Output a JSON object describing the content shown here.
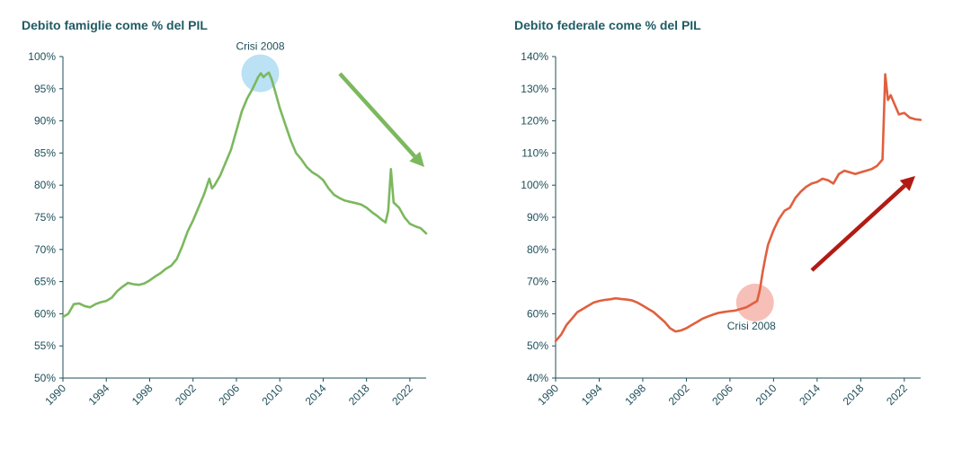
{
  "colors": {
    "left_line": "#7cb85e",
    "right_line": "#e0603f",
    "left_circle": "#aedcf2",
    "right_circle": "#f4b4aa",
    "left_arrow": "#7cb85e",
    "right_arrow": "#b21b14",
    "axis": "#1f4f5a"
  },
  "chart_data": [
    {
      "type": "line",
      "title": "Debito famiglie come % del PIL",
      "xlim": [
        1990,
        2023.5
      ],
      "ylim": [
        50,
        100
      ],
      "x_ticks": [
        "1990",
        "1994",
        "1998",
        "2002",
        "2006",
        "2010",
        "2014",
        "2018",
        "2022"
      ],
      "y_ticks": [
        "50%",
        "55%",
        "60%",
        "65%",
        "70%",
        "75%",
        "80%",
        "85%",
        "90%",
        "95%",
        "100%"
      ],
      "annotation": {
        "text": "Crisi 2008",
        "x": 2008.2,
        "y": 97.4
      },
      "trend_arrow": "down",
      "series": [
        {
          "x": [
            1990,
            1990.5,
            1991,
            1991.5,
            1992,
            1992.5,
            1993,
            1993.5,
            1994,
            1994.5,
            1995,
            1995.5,
            1996,
            1996.5,
            1997,
            1997.5,
            1998,
            1998.5,
            1999,
            1999.5,
            2000,
            2000.5,
            2001,
            2001.5,
            2002,
            2002.5,
            2003,
            2003.5,
            2003.75,
            2004,
            2004.5,
            2005,
            2005.5,
            2006,
            2006.5,
            2007,
            2007.5,
            2008,
            2008.25,
            2008.5,
            2008.75,
            2009,
            2009.25,
            2009.5,
            2010,
            2010.5,
            2011,
            2011.5,
            2012,
            2012.5,
            2013,
            2013.5,
            2014,
            2014.5,
            2015,
            2015.5,
            2016,
            2016.5,
            2017,
            2017.5,
            2018,
            2018.5,
            2019,
            2019.5,
            2019.75,
            2020,
            2020.25,
            2020.5,
            2021,
            2021.5,
            2022,
            2022.5,
            2023,
            2023.5
          ],
          "values": [
            59.5,
            60.0,
            61.5,
            61.6,
            61.2,
            61.0,
            61.5,
            61.8,
            62.0,
            62.5,
            63.5,
            64.2,
            64.8,
            64.6,
            64.5,
            64.7,
            65.2,
            65.8,
            66.3,
            67.0,
            67.5,
            68.5,
            70.5,
            72.8,
            74.5,
            76.5,
            78.5,
            81.0,
            79.5,
            80.0,
            81.5,
            83.5,
            85.5,
            88.5,
            91.5,
            93.5,
            95.0,
            96.8,
            97.4,
            96.8,
            97.2,
            97.5,
            96.5,
            95.0,
            92.0,
            89.5,
            87.0,
            85.0,
            84.0,
            82.8,
            82.0,
            81.5,
            80.8,
            79.5,
            78.5,
            78.0,
            77.6,
            77.4,
            77.2,
            77.0,
            76.5,
            75.8,
            75.2,
            74.5,
            74.2,
            76.0,
            82.5,
            77.3,
            76.5,
            75.0,
            74.0,
            73.6,
            73.3,
            72.5
          ]
        }
      ]
    },
    {
      "type": "line",
      "title": "Debito federale come % del PIL",
      "xlim": [
        1990,
        2023.5
      ],
      "ylim": [
        40,
        140
      ],
      "x_ticks": [
        "1990",
        "1994",
        "1998",
        "2002",
        "2006",
        "2010",
        "2014",
        "2018",
        "2022"
      ],
      "y_ticks": [
        "40%",
        "50%",
        "60%",
        "70%",
        "80%",
        "90%",
        "100%",
        "110%",
        "120%",
        "130%",
        "140%"
      ],
      "annotation": {
        "text": "Crisi 2008",
        "x": 2008.3,
        "y": 63.5
      },
      "trend_arrow": "up",
      "series": [
        {
          "x": [
            1990,
            1990.5,
            1991,
            1991.5,
            1992,
            1992.5,
            1993,
            1993.5,
            1994,
            1994.5,
            1995,
            1995.5,
            1996,
            1996.5,
            1997,
            1997.5,
            1998,
            1998.5,
            1999,
            1999.5,
            2000,
            2000.5,
            2001,
            2001.5,
            2002,
            2002.5,
            2003,
            2003.5,
            2004,
            2004.5,
            2005,
            2005.5,
            2006,
            2006.5,
            2007,
            2007.5,
            2008,
            2008.5,
            2008.75,
            2009,
            2009.25,
            2009.5,
            2010,
            2010.5,
            2011,
            2011.5,
            2012,
            2012.5,
            2013,
            2013.5,
            2014,
            2014.5,
            2015,
            2015.5,
            2016,
            2016.5,
            2017,
            2017.5,
            2018,
            2018.5,
            2019,
            2019.5,
            2019.75,
            2020,
            2020.25,
            2020.5,
            2020.75,
            2021,
            2021.5,
            2022,
            2022.5,
            2023,
            2023.5
          ],
          "values": [
            51.5,
            53.5,
            56.5,
            58.5,
            60.5,
            61.5,
            62.5,
            63.5,
            64.0,
            64.3,
            64.5,
            64.8,
            64.6,
            64.4,
            64.2,
            63.5,
            62.5,
            61.5,
            60.5,
            59.0,
            57.5,
            55.5,
            54.5,
            54.8,
            55.5,
            56.5,
            57.5,
            58.5,
            59.2,
            59.8,
            60.3,
            60.6,
            60.8,
            61.0,
            61.5,
            62.0,
            63.0,
            64.0,
            67.5,
            73.0,
            77.5,
            81.5,
            86.0,
            89.5,
            92.0,
            93.0,
            96.0,
            98.0,
            99.5,
            100.5,
            101.0,
            102.0,
            101.5,
            100.5,
            103.5,
            104.5,
            104.0,
            103.5,
            104.0,
            104.5,
            105.0,
            106.0,
            107.0,
            108.0,
            134.5,
            126.5,
            128.0,
            126.0,
            122.0,
            122.5,
            121.0,
            120.5,
            120.3
          ]
        }
      ]
    }
  ]
}
